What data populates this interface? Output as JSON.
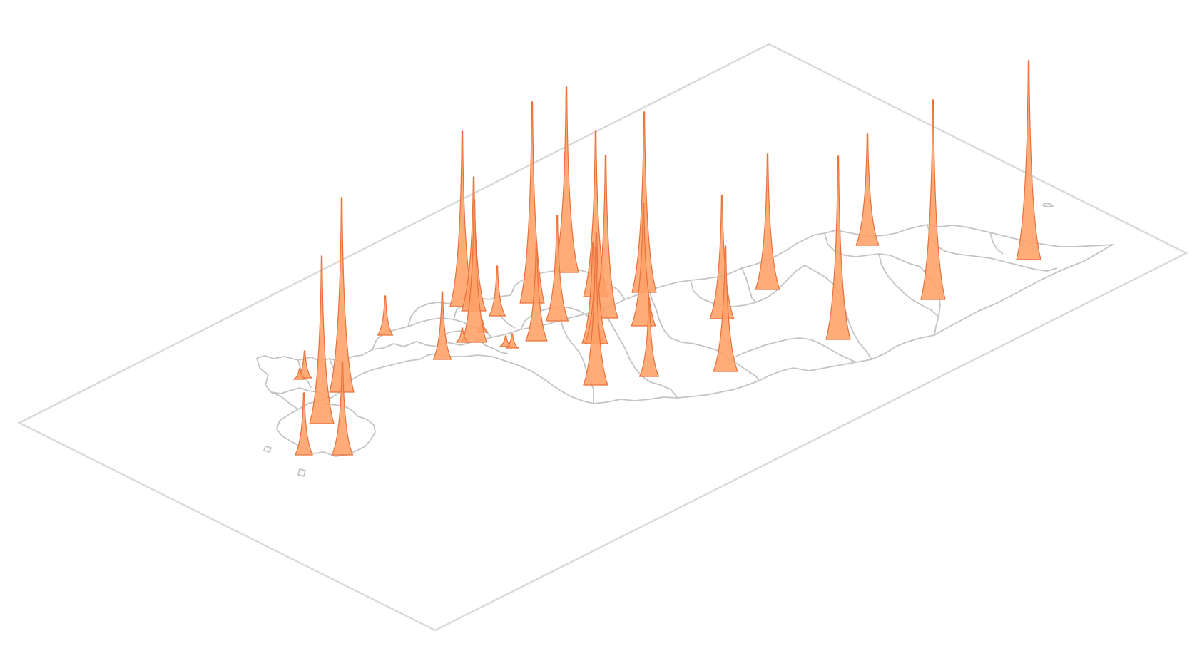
{
  "map": {
    "plane_color": "#d9d9d9",
    "border_color": "#c4c4c4",
    "spike_fill": "#ffa066",
    "spike_stroke": "#e8703a"
  },
  "spikes": [
    {
      "id": "s01",
      "value": 38
    },
    {
      "id": "s02",
      "value": 15
    },
    {
      "id": "s03",
      "value": 235
    },
    {
      "id": "s04",
      "value": 273
    },
    {
      "id": "s05",
      "value": 87
    },
    {
      "id": "s06",
      "value": 130
    },
    {
      "id": "s07",
      "value": 55
    },
    {
      "id": "s08",
      "value": 95
    },
    {
      "id": "s09",
      "value": 246
    },
    {
      "id": "s10",
      "value": 188
    },
    {
      "id": "s11",
      "value": 200
    },
    {
      "id": "s12",
      "value": 70
    },
    {
      "id": "s13",
      "value": 15
    },
    {
      "id": "s14",
      "value": 282
    },
    {
      "id": "s15",
      "value": 138
    },
    {
      "id": "s16",
      "value": 20
    },
    {
      "id": "s17",
      "value": 17
    },
    {
      "id": "s18",
      "value": 20
    },
    {
      "id": "s19",
      "value": 260
    },
    {
      "id": "s20",
      "value": 148
    },
    {
      "id": "s21",
      "value": 232
    },
    {
      "id": "s22",
      "value": 193
    },
    {
      "id": "s23",
      "value": 228
    },
    {
      "id": "s24",
      "value": 140
    },
    {
      "id": "s25",
      "value": 155
    },
    {
      "id": "s26",
      "value": 253
    },
    {
      "id": "s27",
      "value": 110
    },
    {
      "id": "s28",
      "value": 172
    },
    {
      "id": "s29",
      "value": 173
    },
    {
      "id": "s30",
      "value": 190
    },
    {
      "id": "s31",
      "value": 176
    },
    {
      "id": "s32",
      "value": 257
    },
    {
      "id": "s33",
      "value": 156
    },
    {
      "id": "s34",
      "value": 280
    },
    {
      "id": "s35",
      "value": 279
    }
  ]
}
